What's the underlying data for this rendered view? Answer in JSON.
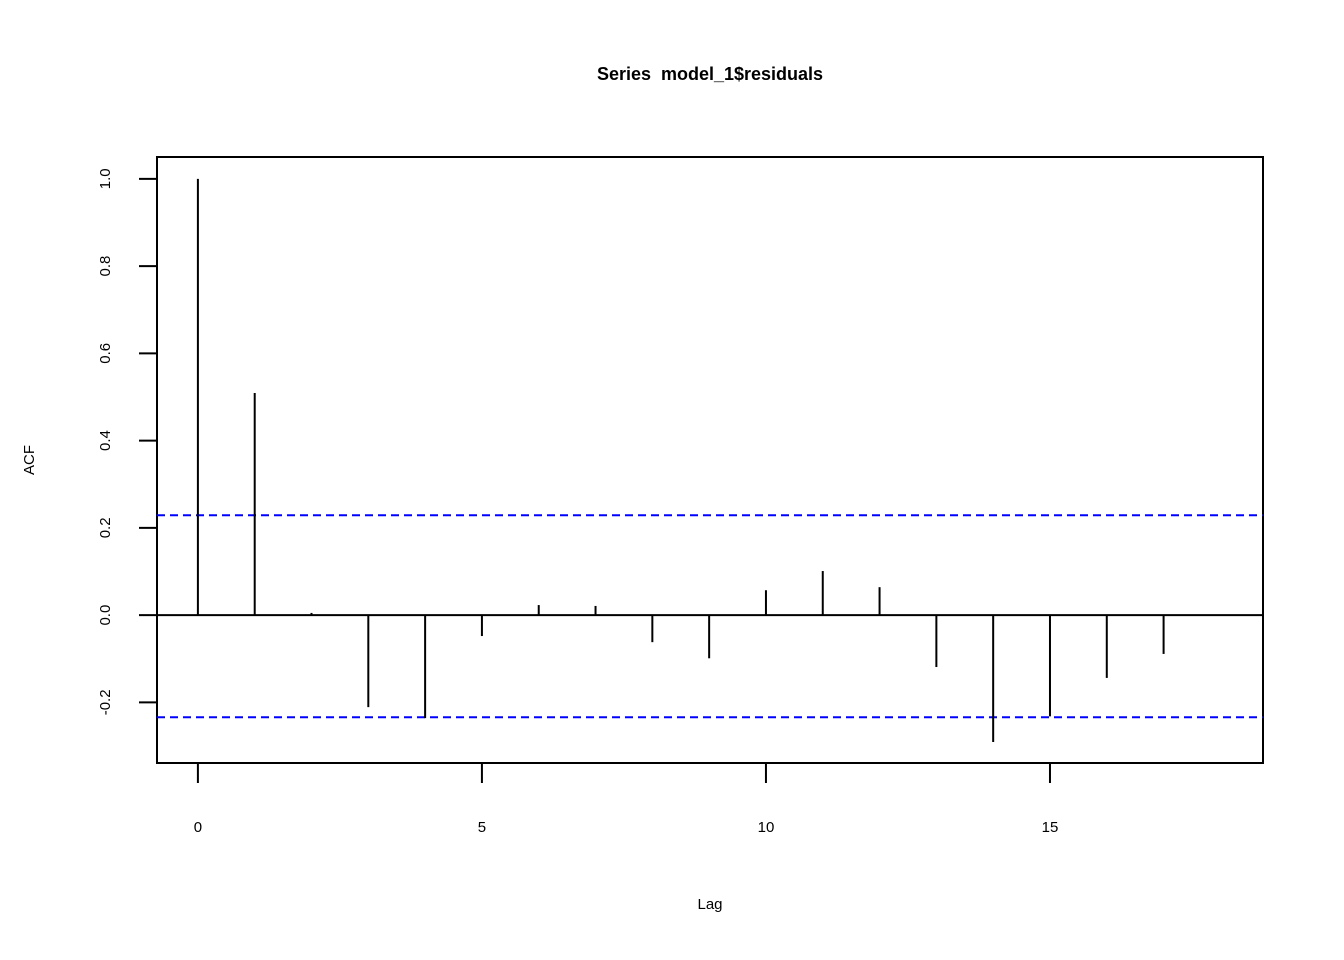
{
  "chart_data": {
    "type": "acf",
    "title": "Series  model_1$residuals",
    "x_label": "Lag",
    "y_label": "ACF",
    "x": [
      0,
      1,
      2,
      3,
      4,
      5,
      6,
      7,
      8,
      9,
      10,
      11,
      12,
      13,
      14,
      15,
      16,
      17
    ],
    "values": [
      1.0,
      0.509,
      0.005,
      -0.211,
      -0.236,
      -0.048,
      0.023,
      0.021,
      -0.062,
      -0.099,
      0.057,
      0.101,
      0.064,
      -0.119,
      -0.291,
      -0.232,
      -0.144,
      -0.089
    ],
    "color": "#000000",
    "ci_lines": [
      0.229,
      -0.234
    ],
    "ci_color": "#0000ff",
    "xlim": [
      -0.72,
      18.75
    ],
    "ylim": [
      -0.339,
      1.05
    ],
    "xticks": [
      0,
      5,
      10,
      15
    ],
    "yticks": [
      -0.2,
      {
        "value": 0,
        "label": "0.0"
      },
      0.2,
      0.4,
      0.6,
      0.8,
      {
        "value": 1,
        "label": "1.0"
      }
    ]
  }
}
